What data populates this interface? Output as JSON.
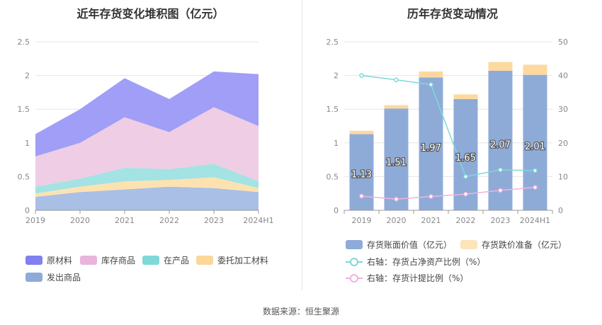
{
  "source": "数据来源：恒生聚源",
  "chart_data": [
    {
      "type": "area",
      "stacked": true,
      "title": "近年存货变化堆积图（亿元）",
      "categories": [
        "2019",
        "2020",
        "2021",
        "2022",
        "2023",
        "2024H1"
      ],
      "ylim": [
        0,
        2.5
      ],
      "yticks": [
        "0",
        "0.5",
        "1",
        "1.5",
        "2",
        "2.5"
      ],
      "legend_position": "bottom",
      "series": [
        {
          "name": "发出商品",
          "color": "#a9bfe6",
          "values": [
            0.2,
            0.27,
            0.31,
            0.35,
            0.33,
            0.27
          ]
        },
        {
          "name": "委托加工材料",
          "color": "#fde2b0",
          "values": [
            0.05,
            0.08,
            0.12,
            0.1,
            0.16,
            0.06
          ]
        },
        {
          "name": "在产品",
          "color": "#a3e3e3",
          "values": [
            0.1,
            0.12,
            0.2,
            0.16,
            0.2,
            0.1
          ]
        },
        {
          "name": "库存商品",
          "color": "#efcde4",
          "values": [
            0.45,
            0.53,
            0.75,
            0.55,
            0.84,
            0.82
          ]
        },
        {
          "name": "原材料",
          "color": "#a09ef6",
          "values": [
            0.33,
            0.5,
            0.58,
            0.49,
            0.53,
            0.77
          ]
        }
      ],
      "legend_colors": [
        "#8080f0",
        "#e8b4dc",
        "#7fd8d8",
        "#fcd79a",
        "#8eabd8"
      ]
    },
    {
      "type": "bar",
      "title": "历年存货变动情况",
      "categories": [
        "2019",
        "2020",
        "2021",
        "2022",
        "2023",
        "2024H1"
      ],
      "ylim": [
        0,
        2.5
      ],
      "yticks": [
        "0",
        "0.5",
        "1",
        "1.5",
        "2",
        "2.5"
      ],
      "y2lim": [
        0,
        50
      ],
      "y2ticks": [
        "0",
        "10",
        "20",
        "30",
        "40",
        "50"
      ],
      "legend_position": "bottom",
      "bar_series": [
        {
          "name": "存货账面价值（亿元）",
          "color": "#8eabd8",
          "values": [
            1.13,
            1.51,
            1.97,
            1.65,
            2.07,
            2.01
          ],
          "labels": [
            "1.13",
            "1.51",
            "1.97",
            "1.65",
            "2.07",
            "2.01"
          ]
        },
        {
          "name": "存货跌价准备（亿元）",
          "color": "#fdd9a0",
          "values": [
            0.05,
            0.05,
            0.09,
            0.07,
            0.13,
            0.15
          ]
        }
      ],
      "line_series": [
        {
          "name": "右轴：存货占净资产比例（%）",
          "color": "#7fd8d8",
          "values": [
            40.0,
            38.7,
            37.3,
            10.0,
            12.0,
            11.8
          ]
        },
        {
          "name": "右轴：存货计提比例（%）",
          "color": "#efb4dc",
          "values": [
            4.2,
            3.3,
            4.1,
            4.8,
            5.9,
            6.8
          ]
        }
      ]
    }
  ]
}
